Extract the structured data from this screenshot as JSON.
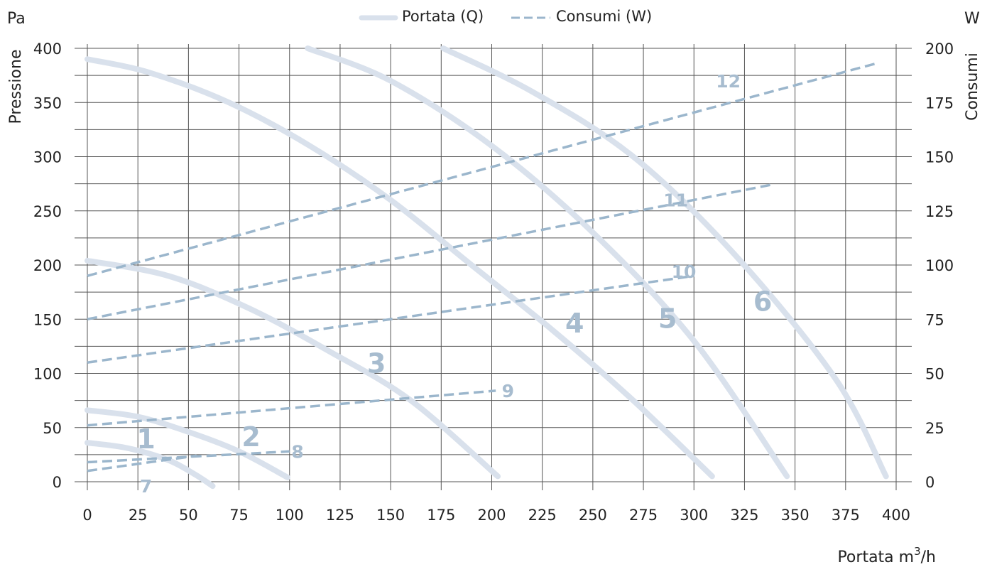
{
  "chart_data": {
    "type": "line",
    "left_unit": "Pa",
    "right_unit": "W",
    "ylabel": "Pressione",
    "y2label": "Consumi",
    "xlabel_text": "Portata  m",
    "xlabel_sup": "3",
    "xlabel_suffix": "/h",
    "xlim": [
      0,
      400
    ],
    "ylim": [
      0,
      400
    ],
    "y2lim": [
      0,
      200
    ],
    "x_ticks": [
      "0",
      "25",
      "50",
      "75",
      "100",
      "125",
      "150",
      "175",
      "200",
      "225",
      "250",
      "275",
      "300",
      "325",
      "350",
      "375",
      "400"
    ],
    "y_ticks": [
      "0",
      "50",
      "100",
      "150",
      "200",
      "250",
      "300",
      "350",
      "400"
    ],
    "y2_ticks": [
      "0",
      "25",
      "50",
      "75",
      "100",
      "125",
      "150",
      "175",
      "200"
    ],
    "grid": true,
    "legend_position": "top-center",
    "legend": [
      {
        "label": "Portata (Q)",
        "style": "solid"
      },
      {
        "label": "Consumi (W)",
        "style": "dashed"
      }
    ],
    "colors": {
      "flow": "#d9e1ec",
      "consumption": "#9bb6cc",
      "label": "#a7bccf",
      "grid": "#555555"
    },
    "flow_curves": [
      {
        "label": "1",
        "label_at": [
          29,
          40
        ],
        "points": [
          [
            0,
            36
          ],
          [
            20,
            31
          ],
          [
            40,
            20
          ],
          [
            53,
            7
          ],
          [
            62,
            -4
          ]
        ]
      },
      {
        "label": "2",
        "label_at": [
          81,
          42
        ],
        "points": [
          [
            0,
            66
          ],
          [
            25,
            60
          ],
          [
            50,
            46
          ],
          [
            75,
            28
          ],
          [
            99,
            4
          ]
        ]
      },
      {
        "label": "3",
        "label_at": [
          143,
          110
        ],
        "points": [
          [
            0,
            204
          ],
          [
            40,
            190
          ],
          [
            80,
            160
          ],
          [
            120,
            120
          ],
          [
            160,
            75
          ],
          [
            203,
            5
          ]
        ]
      },
      {
        "label": "4",
        "label_at": [
          241,
          147
        ],
        "points": [
          [
            0,
            390
          ],
          [
            30,
            378
          ],
          [
            70,
            350
          ],
          [
            110,
            310
          ],
          [
            150,
            260
          ],
          [
            190,
            200
          ],
          [
            230,
            140
          ],
          [
            270,
            75
          ],
          [
            309,
            5
          ]
        ]
      },
      {
        "label": "5",
        "label_at": [
          287,
          151
        ],
        "points": [
          [
            109,
            400
          ],
          [
            150,
            370
          ],
          [
            200,
            310
          ],
          [
            250,
            230
          ],
          [
            300,
            130
          ],
          [
            346,
            5
          ]
        ]
      },
      {
        "label": "6",
        "label_at": [
          334,
          167
        ],
        "points": [
          [
            176,
            400
          ],
          [
            220,
            360
          ],
          [
            270,
            300
          ],
          [
            320,
            210
          ],
          [
            370,
            95
          ],
          [
            395,
            5
          ]
        ]
      }
    ],
    "consumption_lines": [
      {
        "label": "7",
        "label_at": [
          29,
          -2
        ],
        "x": [
          0,
          54
        ],
        "w": [
          5,
          12
        ]
      },
      {
        "label": "8",
        "label_at": [
          104,
          14
        ],
        "x": [
          0,
          100
        ],
        "w": [
          9,
          14
        ]
      },
      {
        "label": "9",
        "label_at": [
          208,
          42
        ],
        "x": [
          0,
          202
        ],
        "w": [
          26,
          42
        ]
      },
      {
        "label": "10",
        "label_at": [
          295,
          97
        ],
        "x": [
          0,
          300
        ],
        "w": [
          55,
          95
        ]
      },
      {
        "label": "11",
        "label_at": [
          291,
          130
        ],
        "x": [
          0,
          338
        ],
        "w": [
          75,
          137
        ]
      },
      {
        "label": "12",
        "label_at": [
          317,
          185
        ],
        "x": [
          0,
          390
        ],
        "w": [
          95,
          193
        ]
      }
    ]
  }
}
